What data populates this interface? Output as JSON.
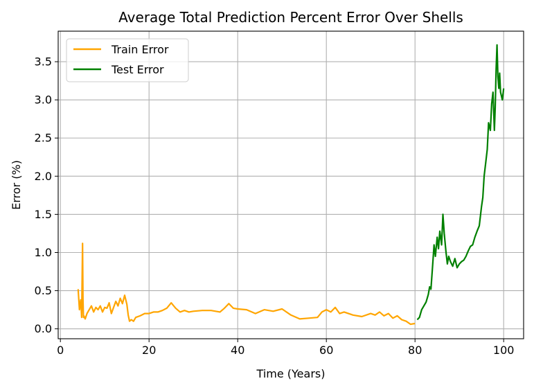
{
  "chart_data": {
    "type": "line",
    "title": "Average Total Prediction Percent Error Over Shells",
    "xlabel": "Time (Years)",
    "ylabel": "Error (%)",
    "xlim": [
      -0.5,
      104.5
    ],
    "ylim": [
      -0.13,
      3.9
    ],
    "xticks": [
      0,
      20,
      40,
      60,
      80,
      100
    ],
    "yticks": [
      0.0,
      0.5,
      1.0,
      1.5,
      2.0,
      2.5,
      3.0,
      3.5
    ],
    "xtick_labels": [
      "0",
      "20",
      "40",
      "60",
      "80",
      "100"
    ],
    "ytick_labels": [
      "0.0",
      "0.5",
      "1.0",
      "1.5",
      "2.0",
      "2.5",
      "3.0",
      "3.5"
    ],
    "grid": true,
    "legend_position": "top-left",
    "series": [
      {
        "name": "Train Error",
        "color": "#ffa500",
        "x": [
          4.0,
          4.3,
          4.6,
          4.8,
          5.0,
          5.1,
          5.2,
          5.3,
          5.6,
          6.0,
          6.5,
          7.0,
          7.5,
          8.0,
          8.5,
          9.0,
          9.5,
          10.0,
          10.5,
          11.0,
          11.5,
          12.0,
          12.5,
          13.0,
          13.5,
          14.0,
          14.5,
          15.0,
          15.3,
          15.6,
          16.0,
          16.5,
          17.0,
          18.0,
          19.0,
          20.0,
          21.0,
          22.0,
          23.0,
          24.0,
          25.0,
          26.0,
          27.0,
          28.0,
          29.0,
          30.0,
          32.0,
          34.0,
          36.0,
          37.0,
          38.0,
          39.0,
          40.0,
          42.0,
          44.0,
          46.0,
          48.0,
          50.0,
          52.0,
          54.0,
          56.0,
          58.0,
          59.0,
          60.0,
          61.0,
          62.0,
          63.0,
          64.0,
          66.0,
          68.0,
          70.0,
          71.0,
          72.0,
          73.0,
          74.0,
          75.0,
          76.0,
          77.0,
          78.0,
          79.0,
          80.0
        ],
        "values": [
          0.52,
          0.25,
          0.38,
          0.15,
          1.12,
          0.4,
          0.15,
          0.17,
          0.13,
          0.2,
          0.25,
          0.3,
          0.22,
          0.28,
          0.25,
          0.3,
          0.22,
          0.28,
          0.27,
          0.34,
          0.2,
          0.28,
          0.36,
          0.3,
          0.4,
          0.33,
          0.44,
          0.32,
          0.18,
          0.1,
          0.12,
          0.1,
          0.15,
          0.17,
          0.2,
          0.2,
          0.22,
          0.22,
          0.24,
          0.27,
          0.34,
          0.27,
          0.22,
          0.24,
          0.22,
          0.23,
          0.24,
          0.24,
          0.22,
          0.27,
          0.33,
          0.27,
          0.26,
          0.25,
          0.2,
          0.25,
          0.23,
          0.26,
          0.18,
          0.13,
          0.14,
          0.15,
          0.22,
          0.25,
          0.22,
          0.28,
          0.2,
          0.22,
          0.18,
          0.16,
          0.2,
          0.18,
          0.22,
          0.17,
          0.2,
          0.14,
          0.17,
          0.12,
          0.1,
          0.06,
          0.07
        ]
      },
      {
        "name": "Test Error",
        "color": "#008000",
        "x": [
          80.5,
          81.0,
          81.5,
          82.0,
          82.5,
          83.0,
          83.3,
          83.6,
          84.0,
          84.3,
          84.6,
          85.0,
          85.3,
          85.6,
          86.0,
          86.3,
          86.6,
          87.0,
          87.3,
          87.6,
          88.0,
          88.5,
          89.0,
          89.5,
          90.0,
          90.5,
          91.0,
          91.5,
          92.0,
          92.5,
          93.0,
          93.5,
          94.0,
          94.5,
          95.0,
          95.3,
          95.6,
          96.0,
          96.3,
          96.6,
          97.0,
          97.3,
          97.6,
          97.9,
          98.1,
          98.3,
          98.5,
          98.7,
          98.9,
          99.1,
          99.3,
          99.5,
          99.7,
          100.0
        ],
        "values": [
          0.12,
          0.15,
          0.25,
          0.3,
          0.35,
          0.45,
          0.55,
          0.52,
          0.85,
          1.1,
          0.95,
          1.2,
          1.05,
          1.28,
          1.1,
          1.5,
          1.25,
          1.0,
          0.85,
          0.95,
          0.88,
          0.82,
          0.92,
          0.8,
          0.85,
          0.88,
          0.9,
          0.95,
          1.02,
          1.08,
          1.1,
          1.2,
          1.28,
          1.35,
          1.6,
          1.72,
          2.0,
          2.2,
          2.35,
          2.7,
          2.6,
          2.95,
          3.1,
          2.6,
          2.9,
          3.4,
          3.72,
          3.3,
          3.15,
          3.35,
          3.1,
          3.05,
          3.0,
          3.15
        ]
      }
    ]
  }
}
